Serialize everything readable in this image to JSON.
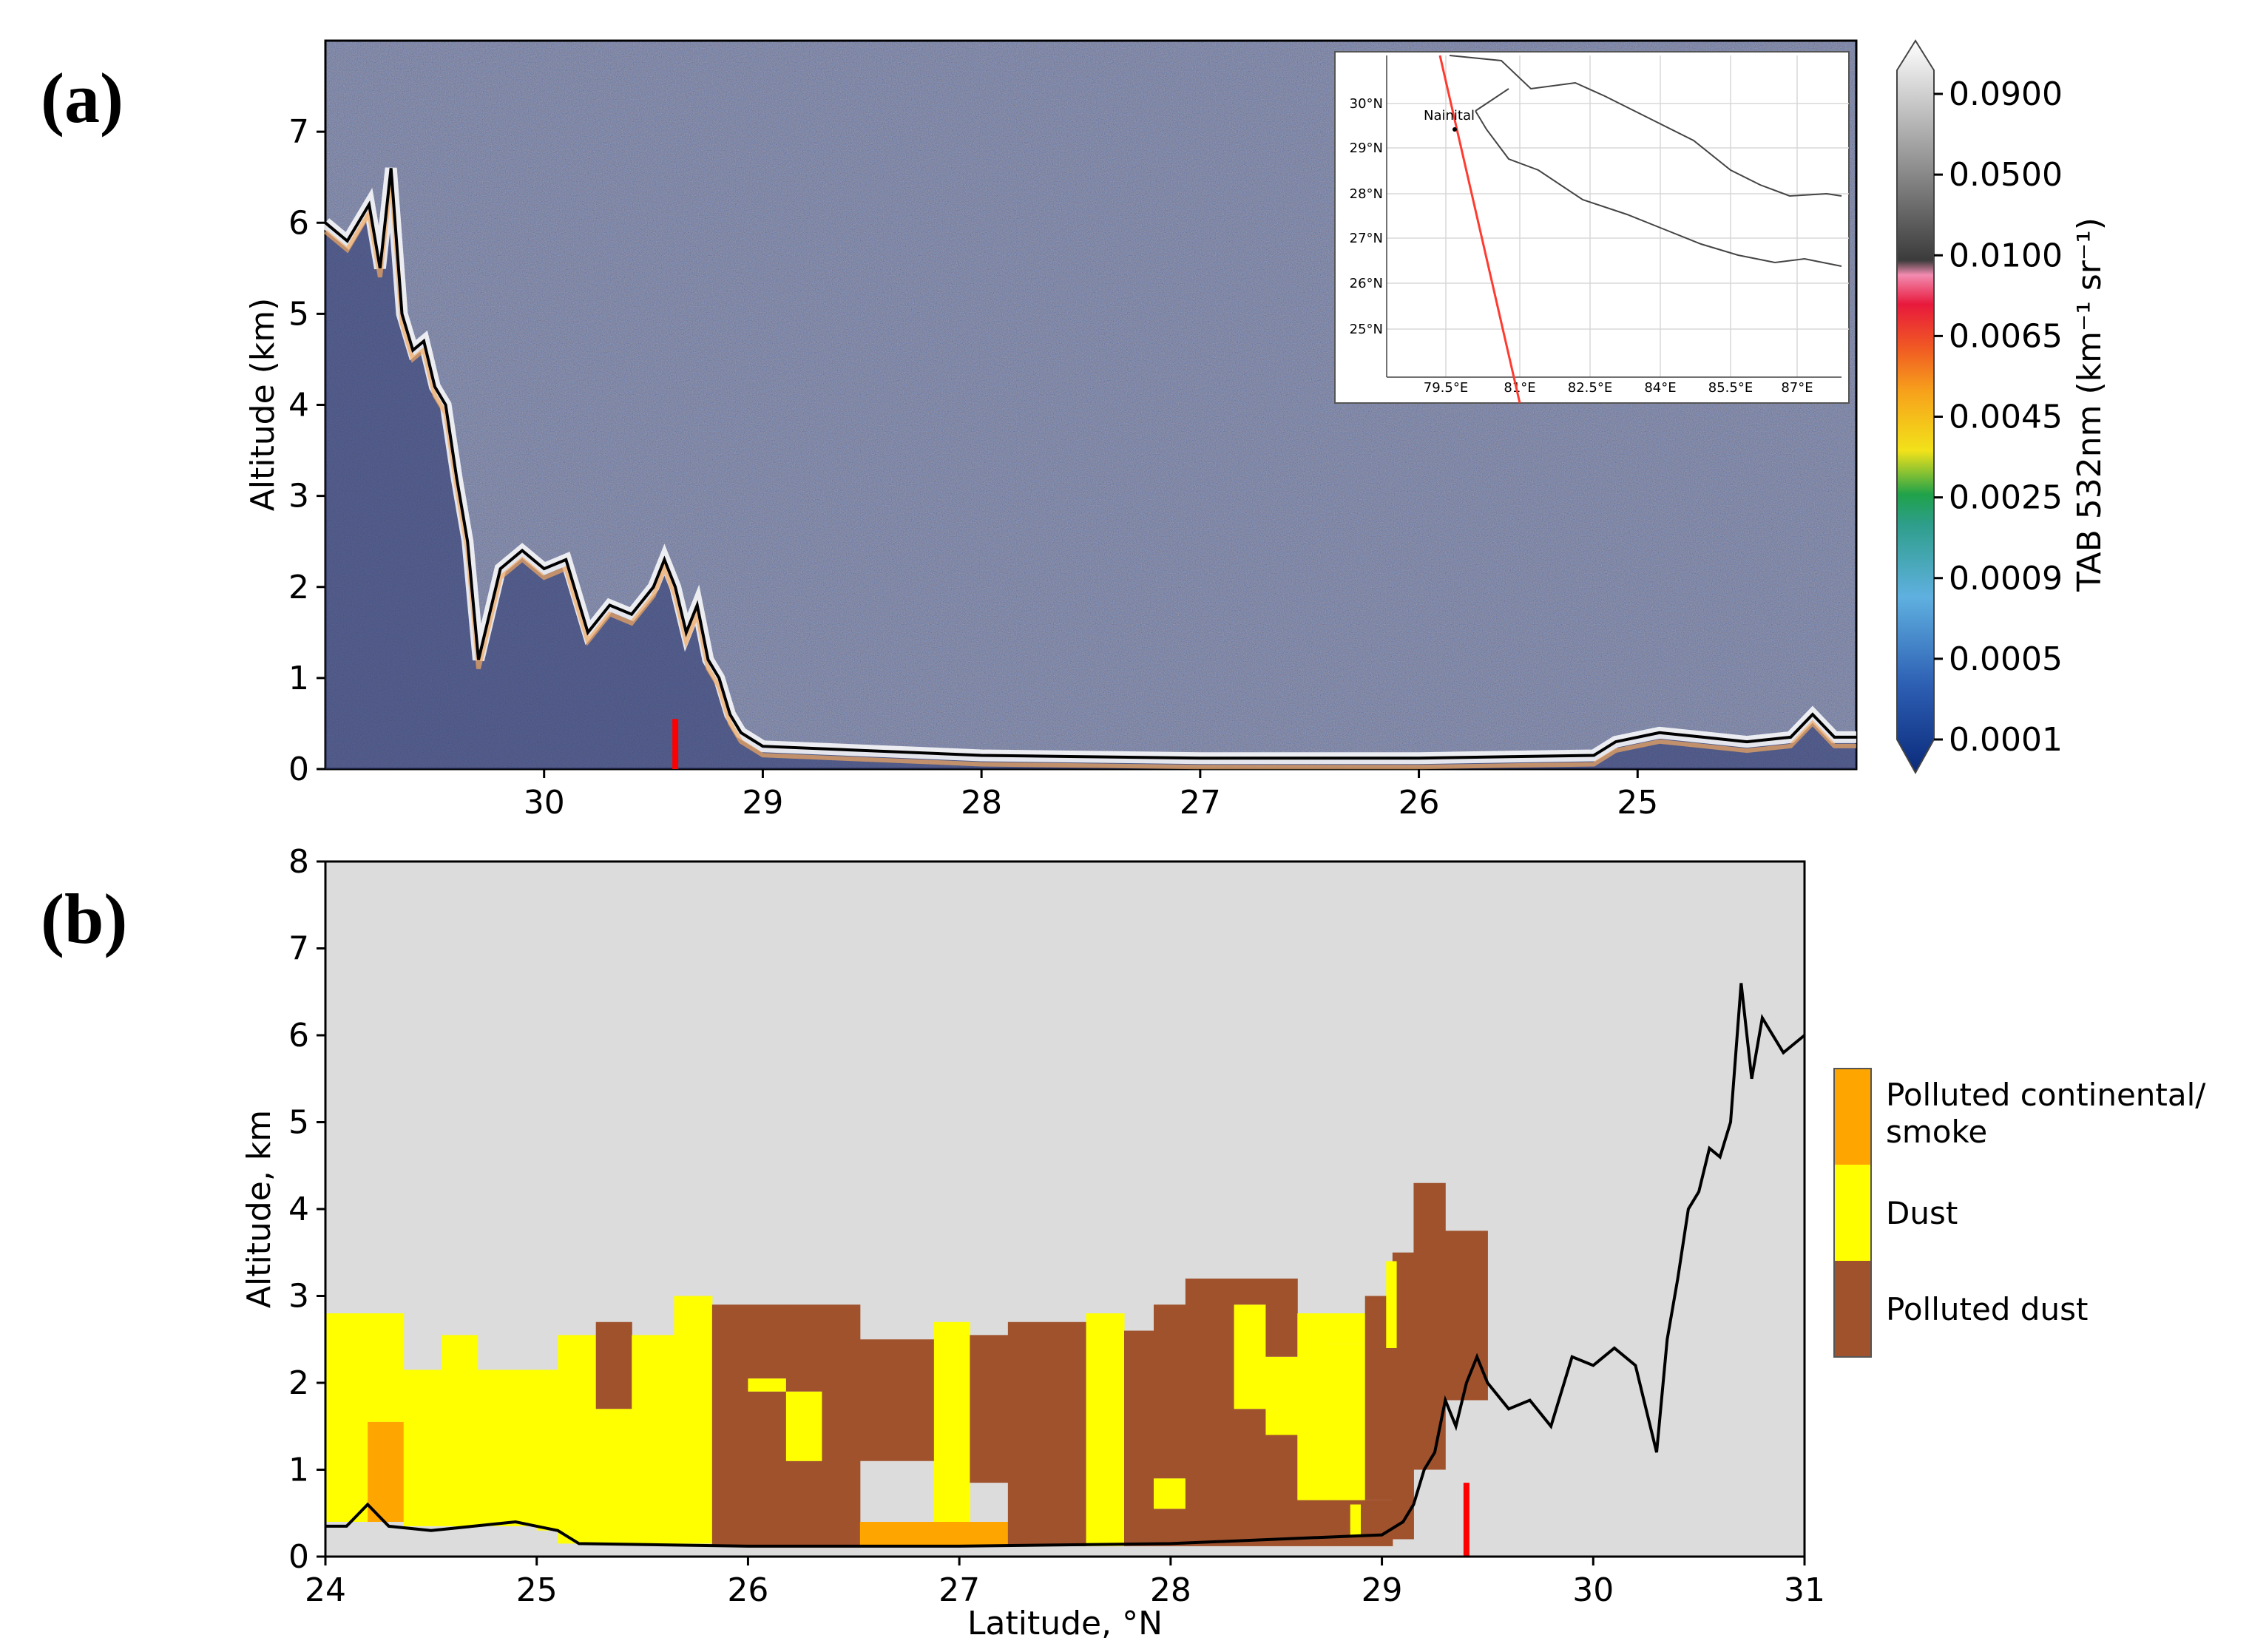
{
  "panels": {
    "a": {
      "label": "(a)"
    },
    "b": {
      "label": "(b)"
    }
  },
  "colors": {
    "plot_bg_b": "#dcdcdc",
    "polluted_continental_smoke": "#ffa500",
    "dust": "#ffff00",
    "polluted_dust": "#a0522d",
    "marker": "#ff0000",
    "profile_line": "#000000",
    "inset_track": "#ff3b30"
  },
  "chart_data": [
    {
      "type": "heatmap",
      "title": "",
      "xlabel": "",
      "ylabel": "Altitude (km)",
      "xlim": [
        31,
        24
      ],
      "ylim": [
        0,
        8
      ],
      "x_ticks": [
        30,
        29,
        28,
        27,
        26,
        25
      ],
      "x_tick_labels": [
        "30",
        "29",
        "28",
        "27",
        "26",
        "25"
      ],
      "y_ticks": [
        0,
        1,
        2,
        3,
        4,
        5,
        6,
        7
      ],
      "y_tick_labels": [
        "0",
        "1",
        "2",
        "3",
        "4",
        "5",
        "6",
        "7"
      ],
      "marker_latitude": 29.4,
      "colorbar": {
        "label": "TAB 532nm (km⁻¹ sr⁻¹)",
        "tick_labels": [
          "0.0900",
          "0.0500",
          "0.0100",
          "0.0065",
          "0.0045",
          "0.0025",
          "0.0009",
          "0.0005",
          "0.0001"
        ]
      },
      "profile": {
        "lat": [
          31.0,
          30.9,
          30.8,
          30.75,
          30.7,
          30.65,
          30.6,
          30.55,
          30.5,
          30.45,
          30.4,
          30.35,
          30.3,
          30.2,
          30.1,
          30.0,
          29.9,
          29.8,
          29.7,
          29.6,
          29.5,
          29.45,
          29.4,
          29.35,
          29.3,
          29.25,
          29.2,
          29.15,
          29.1,
          29.0,
          28.0,
          27.0,
          26.0,
          25.2,
          25.1,
          25.0,
          24.9,
          24.7,
          24.5,
          24.3,
          24.2,
          24.1,
          24.0
        ],
        "alt": [
          6.0,
          5.8,
          6.2,
          5.5,
          6.6,
          5.0,
          4.6,
          4.7,
          4.2,
          4.0,
          3.2,
          2.5,
          1.2,
          2.2,
          2.4,
          2.2,
          2.3,
          1.5,
          1.8,
          1.7,
          2.0,
          2.3,
          2.0,
          1.5,
          1.8,
          1.2,
          1.0,
          0.6,
          0.4,
          0.25,
          0.15,
          0.12,
          0.12,
          0.15,
          0.3,
          0.35,
          0.4,
          0.35,
          0.3,
          0.35,
          0.6,
          0.35,
          0.35
        ]
      },
      "inset_map": {
        "lat_labels": [
          "30°N",
          "29°N",
          "28°N",
          "27°N",
          "26°N",
          "25°N"
        ],
        "lon_labels": [
          "79.5°E",
          "81°E",
          "82.5°E",
          "84°E",
          "85.5°E",
          "87°E"
        ],
        "place": "Nainital"
      }
    },
    {
      "type": "heatmap",
      "title": "",
      "xlabel": "Latitude, °N",
      "ylabel": "Altitude, km",
      "xlim": [
        24,
        31
      ],
      "ylim": [
        0,
        8
      ],
      "x_ticks": [
        24,
        25,
        26,
        27,
        28,
        29,
        30,
        31
      ],
      "x_tick_labels": [
        "24",
        "25",
        "26",
        "27",
        "28",
        "29",
        "30",
        "31"
      ],
      "y_ticks": [
        0,
        1,
        2,
        3,
        4,
        5,
        6,
        7,
        8
      ],
      "y_tick_labels": [
        "0",
        "1",
        "2",
        "3",
        "4",
        "5",
        "6",
        "7",
        "8"
      ],
      "marker_latitude": 29.4,
      "legend": [
        "Polluted continental/ smoke",
        "Dust",
        "Polluted dust"
      ],
      "legend_lines": [
        [
          "Polluted continental/",
          "smoke"
        ],
        [
          "Dust"
        ],
        [
          "Polluted dust"
        ]
      ],
      "columns": [
        {
          "x0": 24.0,
          "x1": 24.2,
          "segments": [
            [
              0.4,
              2.8,
              "dust"
            ]
          ]
        },
        {
          "x0": 24.2,
          "x1": 24.37,
          "segments": [
            [
              0.4,
              1.55,
              "smoke"
            ],
            [
              1.55,
              2.8,
              "dust"
            ]
          ]
        },
        {
          "x0": 24.37,
          "x1": 24.55,
          "segments": [
            [
              0.35,
              2.15,
              "dust"
            ]
          ]
        },
        {
          "x0": 24.55,
          "x1": 24.72,
          "segments": [
            [
              0.35,
              2.55,
              "dust"
            ]
          ]
        },
        {
          "x0": 24.72,
          "x1": 25.0,
          "segments": [
            [
              0.35,
              2.15,
              "dust"
            ]
          ]
        },
        {
          "x0": 25.0,
          "x1": 25.1,
          "segments": [
            [
              0.3,
              2.15,
              "dust"
            ]
          ]
        },
        {
          "x0": 25.1,
          "x1": 25.28,
          "segments": [
            [
              0.15,
              2.55,
              "dust"
            ]
          ]
        },
        {
          "x0": 25.28,
          "x1": 25.45,
          "segments": [
            [
              0.15,
              1.7,
              "dust"
            ],
            [
              1.7,
              2.7,
              "pdust"
            ]
          ]
        },
        {
          "x0": 25.45,
          "x1": 25.65,
          "segments": [
            [
              0.15,
              2.55,
              "dust"
            ]
          ]
        },
        {
          "x0": 25.65,
          "x1": 25.83,
          "segments": [
            [
              0.15,
              3.0,
              "dust"
            ]
          ]
        },
        {
          "x0": 25.83,
          "x1": 26.0,
          "segments": [
            [
              0.12,
              2.2,
              "pdust"
            ],
            [
              2.2,
              2.9,
              "pdust"
            ]
          ]
        },
        {
          "x0": 26.0,
          "x1": 26.18,
          "segments": [
            [
              0.12,
              1.9,
              "pdust"
            ],
            [
              1.9,
              2.05,
              "dust"
            ],
            [
              2.05,
              2.9,
              "pdust"
            ]
          ]
        },
        {
          "x0": 26.18,
          "x1": 26.35,
          "segments": [
            [
              0.12,
              1.1,
              "pdust"
            ],
            [
              1.1,
              1.9,
              "dust"
            ],
            [
              1.9,
              2.9,
              "pdust"
            ]
          ]
        },
        {
          "x0": 26.35,
          "x1": 26.53,
          "segments": [
            [
              0.12,
              2.9,
              "pdust"
            ]
          ]
        },
        {
          "x0": 26.53,
          "x1": 26.88,
          "segments": [
            [
              0.12,
              0.4,
              "smoke"
            ],
            [
              1.1,
              2.5,
              "pdust"
            ]
          ]
        },
        {
          "x0": 26.88,
          "x1": 27.05,
          "segments": [
            [
              0.12,
              0.4,
              "smoke"
            ],
            [
              0.4,
              2.7,
              "dust"
            ]
          ]
        },
        {
          "x0": 27.05,
          "x1": 27.23,
          "segments": [
            [
              0.12,
              0.4,
              "smoke"
            ],
            [
              0.85,
              2.55,
              "pdust"
            ]
          ]
        },
        {
          "x0": 27.23,
          "x1": 27.6,
          "segments": [
            [
              0.12,
              2.7,
              "pdust"
            ]
          ]
        },
        {
          "x0": 27.6,
          "x1": 27.78,
          "segments": [
            [
              0.12,
              2.8,
              "dust"
            ]
          ]
        },
        {
          "x0": 27.78,
          "x1": 27.92,
          "segments": [
            [
              0.12,
              2.6,
              "pdust"
            ]
          ]
        },
        {
          "x0": 27.92,
          "x1": 28.07,
          "segments": [
            [
              0.12,
              0.55,
              "pdust"
            ],
            [
              0.55,
              0.9,
              "dust"
            ],
            [
              0.9,
              2.9,
              "pdust"
            ]
          ]
        },
        {
          "x0": 28.07,
          "x1": 28.3,
          "segments": [
            [
              0.12,
              3.2,
              "pdust"
            ]
          ]
        },
        {
          "x0": 28.3,
          "x1": 28.45,
          "segments": [
            [
              0.12,
              1.7,
              "pdust"
            ],
            [
              1.7,
              2.9,
              "dust"
            ],
            [
              2.9,
              3.2,
              "pdust"
            ]
          ]
        },
        {
          "x0": 28.45,
          "x1": 28.6,
          "segments": [
            [
              0.12,
              1.4,
              "pdust"
            ],
            [
              1.4,
              2.3,
              "dust"
            ],
            [
              2.3,
              3.2,
              "pdust"
            ]
          ]
        },
        {
          "x0": 28.6,
          "x1": 28.75,
          "segments": [
            [
              0.12,
              0.65,
              "pdust"
            ],
            [
              0.65,
              2.8,
              "dust"
            ]
          ]
        },
        {
          "x0": 28.75,
          "x1": 28.92,
          "segments": [
            [
              0.12,
              0.65,
              "pdust"
            ],
            [
              0.65,
              2.45,
              "dust"
            ],
            [
              2.45,
              2.8,
              "dust"
            ]
          ]
        },
        {
          "x0": 28.92,
          "x1": 29.05,
          "segments": [
            [
              0.12,
              0.65,
              "pdust"
            ],
            [
              0.65,
              3.0,
              "pdust"
            ]
          ]
        },
        {
          "x0": 29.05,
          "x1": 29.15,
          "segments": [
            [
              0.2,
              3.5,
              "pdust"
            ]
          ]
        },
        {
          "x0": 29.15,
          "x1": 29.3,
          "segments": [
            [
              1.0,
              4.3,
              "pdust"
            ]
          ]
        },
        {
          "x0": 29.3,
          "x1": 29.5,
          "segments": [
            [
              1.8,
              3.75,
              "pdust"
            ]
          ]
        }
      ],
      "dust_strips": [
        {
          "x0": 28.85,
          "x1": 28.9,
          "y0": 0.25,
          "y1": 0.6
        },
        {
          "x0": 29.02,
          "x1": 29.07,
          "y0": 2.4,
          "y1": 3.4
        }
      ]
    }
  ]
}
